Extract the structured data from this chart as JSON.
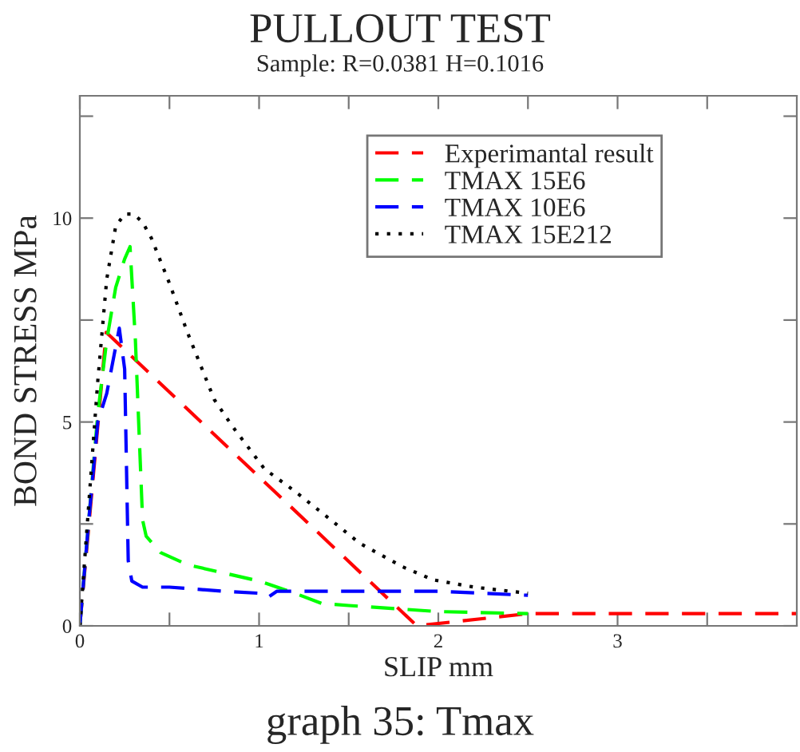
{
  "chart_data": {
    "type": "line",
    "title": "PULLOUT TEST",
    "subtitle": "Sample: R=0.0381 H=0.1016",
    "xlabel": "SLIP mm",
    "ylabel": "BOND STRESS MPa",
    "annotations": [
      "graph 35: Tmax"
    ],
    "xlim": [
      0,
      4
    ],
    "ylim": [
      0,
      13
    ],
    "xticks": [
      0,
      {
        "value": 0.5,
        "label": null
      },
      1,
      {
        "value": 1.5,
        "label": null
      },
      2,
      {
        "value": 2.5,
        "label": null
      },
      3,
      {
        "value": 3.5,
        "label": null
      }
    ],
    "yticks": [
      0,
      {
        "value": 2.5,
        "label": null
      },
      5,
      {
        "value": 7.5,
        "label": null
      },
      10,
      {
        "value": 12.5,
        "label": null
      }
    ],
    "grid": false,
    "legend": "top right",
    "marker": "none",
    "series": [
      {
        "name": "Experimantal result",
        "color": "#ff0000",
        "line_style": "dashed",
        "x": [
          0,
          0.147,
          1.88,
          2.5,
          4
        ],
        "values": [
          0,
          7.2,
          0,
          0.3,
          0.3
        ]
      },
      {
        "name": "TMAX 15E6",
        "color": "#00ff00",
        "line_style": "dashed",
        "x": [
          0,
          0.1,
          0.15,
          0.2,
          0.25,
          0.28,
          0.31,
          0.35,
          0.37,
          0.45,
          0.6,
          0.8,
          1.0,
          1.2,
          1.35,
          1.5,
          2.0,
          2.5
        ],
        "values": [
          0,
          5.2,
          7,
          8.3,
          9,
          9.3,
          7,
          2.6,
          2.2,
          1.8,
          1.5,
          1.3,
          1.1,
          0.8,
          0.55,
          0.5,
          0.35,
          0.3
        ]
      },
      {
        "name": "TMAX 10E6",
        "color": "#0000ff",
        "line_style": "dashed",
        "x": [
          0,
          0.05,
          0.1,
          0.15,
          0.22,
          0.25,
          0.27,
          0.29,
          0.35,
          0.5,
          0.8,
          1.0,
          1.05,
          1.1,
          1.5,
          2.0,
          2.5
        ],
        "values": [
          0,
          2.6,
          5,
          5.7,
          7.3,
          6.3,
          1.6,
          1.1,
          0.95,
          0.95,
          0.85,
          0.8,
          0.7,
          0.85,
          0.85,
          0.85,
          0.75
        ]
      },
      {
        "name": "TMAX 15E212",
        "color": "#000000",
        "line_style": "dotted",
        "x": [
          0,
          0.05,
          0.1,
          0.15,
          0.2,
          0.25,
          0.3,
          0.35,
          0.4,
          0.5,
          0.6,
          0.75,
          0.85,
          1.03,
          1.2,
          1.4,
          1.56,
          1.8,
          1.97,
          2.2,
          2.5
        ],
        "values": [
          0,
          3,
          6,
          8.5,
          9.8,
          10.1,
          10.1,
          9.9,
          9.5,
          8.4,
          7.2,
          5.55,
          4.9,
          3.85,
          3.3,
          2.6,
          2.03,
          1.45,
          1.13,
          0.95,
          0.8
        ]
      }
    ]
  }
}
